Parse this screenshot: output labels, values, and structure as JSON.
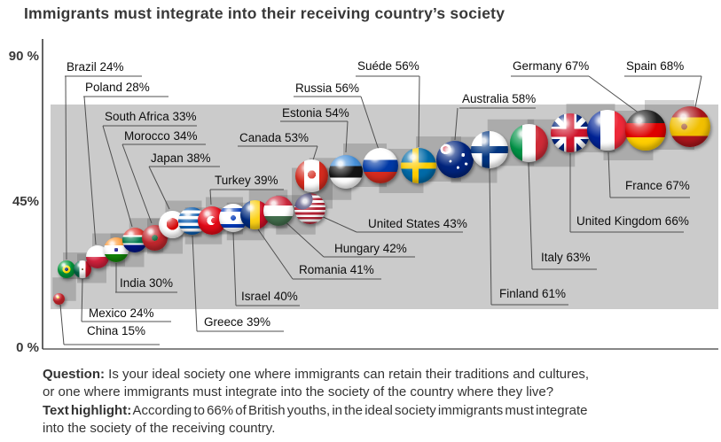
{
  "title": "Immigrants must integrate into their receiving country’s society",
  "y_axis": {
    "tick_90": "90 %",
    "tick_45": "45%",
    "tick_0": "0 %"
  },
  "chart_data": {
    "type": "scatter",
    "title": "Immigrants must integrate into their receiving country’s society",
    "unit": "%",
    "ylim": [
      0,
      90
    ],
    "yticks": [
      "0 %",
      "45%",
      "90 %"
    ],
    "marker_style": "glossy flag sphere, size grows with value, gray step squares behind markers",
    "countries": [
      {
        "name": "China",
        "value": 15,
        "flag_css": "radial-gradient(circle at 40% 35%, #ffde00 0 14%, rgba(0,0,0,0) 14%), linear-gradient(#d7282f,#d7282f)"
      },
      {
        "name": "Brazil",
        "value": 24,
        "flag_css": "radial-gradient(circle at 50% 50%, #002776 0 15%, rgba(0,0,0,0) 15%), radial-gradient(circle at 50% 50%, #ffdf00 0 32%, rgba(0,0,0,0) 32%), linear-gradient(#009c3b,#009c3b)"
      },
      {
        "name": "Mexico",
        "value": 24,
        "flag_css": "radial-gradient(circle at 50% 50%, #6b4b2a 0 9%, rgba(0,0,0,0) 9%), linear-gradient(90deg,#006847 0 33%,#ffffff 33% 67%,#ce1126 67%)"
      },
      {
        "name": "Poland",
        "value": 28,
        "flag_css": "linear-gradient(180deg,#ffffff 0 50%,#d4213d 50%)"
      },
      {
        "name": "India",
        "value": 30,
        "flag_css": "radial-gradient(circle at 50% 50%, #000080 0 11%, rgba(0,0,0,0) 11%), linear-gradient(180deg,#ff9933 0 33%,#ffffff 33% 67%,#138808 67%)"
      },
      {
        "name": "South Africa",
        "value": 33,
        "flag_css": "linear-gradient(180deg,#de3831 0 30%,#ffffff 30% 38%,#007a4d 38% 62%,#ffffff 62% 70%,#001489 70%)"
      },
      {
        "name": "Morocco",
        "value": 34,
        "flag_css": "radial-gradient(circle at 50% 50%, #006233 0 16%, rgba(0,0,0,0) 16%), linear-gradient(#c1272d,#c1272d)"
      },
      {
        "name": "Japan",
        "value": 38,
        "flag_css": "radial-gradient(circle at 50% 48%, #d30000 0 30%, rgba(0,0,0,0) 30%), linear-gradient(#ffffff,#ffffff)"
      },
      {
        "name": "Greece",
        "value": 39,
        "flag_css": "linear-gradient(180deg,#0d5eaf 0 11%,#ffffff 11% 22%,#0d5eaf 22% 33%,#ffffff 33% 44%,#0d5eaf 44% 56%,#ffffff 56% 67%,#0d5eaf 67% 78%,#ffffff 78% 89%,#0d5eaf 89%)"
      },
      {
        "name": "Turkey",
        "value": 39,
        "flag_css": "radial-gradient(circle at 58% 50%, #e30a17 0 14%, rgba(0,0,0,0) 14%), radial-gradient(circle at 48% 50%, #ffffff 0 22%, rgba(0,0,0,0) 22%), linear-gradient(#e30a17,#e30a17)"
      },
      {
        "name": "Israel",
        "value": 40,
        "flag_css": "radial-gradient(circle at 50% 50%, #0038b8 0 13%, rgba(0,0,0,0) 13%), linear-gradient(180deg,#ffffff 0 16%,#0038b8 16% 28%,#ffffff 28% 72%,#0038b8 72% 84%,#ffffff 84%)"
      },
      {
        "name": "Romania",
        "value": 41,
        "flag_css": "linear-gradient(90deg,#002b7f 0 33%,#fcd116 33% 67%,#ce1126 67%)"
      },
      {
        "name": "Hungary",
        "value": 42,
        "flag_css": "linear-gradient(180deg,#cd2a3e 0 33%,#ffffff 33% 67%,#436f4d 67%)"
      },
      {
        "name": "United States",
        "value": 43,
        "flag_css": "radial-gradient(circle at 26% 20%, #3c3b6e 0 30%, rgba(0,0,0,0) 30%), repeating-linear-gradient(180deg,#b22234 0 7.7%,#ffffff 7.7% 15.4%)"
      },
      {
        "name": "Canada",
        "value": 53,
        "flag_css": "radial-gradient(circle at 50% 46%, #d52b1e 0 17%, rgba(0,0,0,0) 17%), linear-gradient(90deg,#d52b1e 0 27%,#ffffff 27% 73%,#d52b1e 73%)"
      },
      {
        "name": "Estonia",
        "value": 54,
        "flag_css": "linear-gradient(180deg,#4891d9 0 33%,#141414 33% 67%,#ffffff 67%)"
      },
      {
        "name": "Russia",
        "value": 56,
        "flag_css": "linear-gradient(180deg,#ffffff 0 34%,#0039a6 34% 67%,#d52b1e 67%)"
      },
      {
        "name": "Suéde",
        "value": 56,
        "flag_css": "linear-gradient(90deg,rgba(0,0,0,0) 0 32%,#fecc00 32% 50%,rgba(0,0,0,0) 50%), linear-gradient(180deg,rgba(0,0,0,0) 0 41%,#fecc00 41% 59%,rgba(0,0,0,0) 59%), linear-gradient(#006aa7,#006aa7)"
      },
      {
        "name": "Australia",
        "value": 58,
        "flag_css": "radial-gradient(circle at 72% 38%, #ffffff 0 5%, rgba(0,0,0,0) 5%), radial-gradient(circle at 80% 62%, #ffffff 0 4%, rgba(0,0,0,0) 4%), radial-gradient(circle at 58% 72%, #ffffff 0 4%, rgba(0,0,0,0) 4%), radial-gradient(circle at 38% 55%, #ffffff 0 4%, rgba(0,0,0,0) 4%), radial-gradient(circle at 25% 22%, #cf142b 0 7%, #ffffff 7% 13%, rgba(0,0,0,0) 13%), linear-gradient(#00247d,#00247d)"
      },
      {
        "name": "Finland",
        "value": 61,
        "flag_css": "linear-gradient(90deg,rgba(0,0,0,0) 0 30%,#003580 30% 50%,rgba(0,0,0,0) 50%), linear-gradient(180deg,rgba(0,0,0,0) 0 40%,#003580 40% 60%,rgba(0,0,0,0) 60%), linear-gradient(#ffffff,#ffffff)"
      },
      {
        "name": "Italy",
        "value": 63,
        "flag_css": "linear-gradient(90deg,#009246 0 33%,#ffffff 33% 67%,#ce2b37 67%)"
      },
      {
        "name": "United Kingdom",
        "value": 66,
        "flag_css": "linear-gradient(180deg,rgba(0,0,0,0) 0 40%,#cf142b 40% 60%,rgba(0,0,0,0) 60%), linear-gradient(90deg,rgba(0,0,0,0) 0 40%,#cf142b 40% 60%,rgba(0,0,0,0) 60%), linear-gradient(180deg,rgba(0,0,0,0) 0 34%,#ffffff 34% 66%,rgba(0,0,0,0) 66%), linear-gradient(90deg,rgba(0,0,0,0) 0 34%,#ffffff 34% 66%,rgba(0,0,0,0) 66%), linear-gradient(45deg,rgba(0,0,0,0) 0 45%,#ffffff 45% 55%,rgba(0,0,0,0) 55%), linear-gradient(135deg,rgba(0,0,0,0) 0 45%,#ffffff 45% 55%,rgba(0,0,0,0) 55%), linear-gradient(#00247d,#00247d)"
      },
      {
        "name": "France",
        "value": 67,
        "flag_css": "linear-gradient(90deg,#002395 0 33%,#ffffff 33% 67%,#ed2939 67%)"
      },
      {
        "name": "Germany",
        "value": 67,
        "flag_css": "linear-gradient(180deg,#1f1f1f 0 33%,#dd0000 33% 67%,#ffce00 67%)"
      },
      {
        "name": "Spain",
        "value": 68,
        "flag_css": "radial-gradient(circle at 36% 50%, #a0522d 0 9%, rgba(0,0,0,0) 9%), linear-gradient(180deg,#aa151b 0 27%,#f1bf00 27% 73%,#aa151b 73%)"
      }
    ]
  },
  "footer": {
    "lines": [
      {
        "bold": "Question:",
        "text": " Is your ideal society one where immigrants can retain their traditions and cultures,"
      },
      {
        "bold": "",
        "text": "or one where immigrants must integrate into the society of the country where they live?"
      },
      {
        "bold": "Text highlight:",
        "text": " According to 66% of British youths, in the ideal society immigrants must integrate"
      },
      {
        "bold": "",
        "text": "into the society of the receiving country."
      }
    ]
  },
  "colors": {
    "band": "#cbcbcb",
    "step_square": "rgba(70,70,70,0.24)",
    "leader_line": "#4f4f4f",
    "axis": "#3d3d3d",
    "label_text": "#0d0d0d",
    "title_text": "#383838",
    "footer_text": "#333333"
  }
}
